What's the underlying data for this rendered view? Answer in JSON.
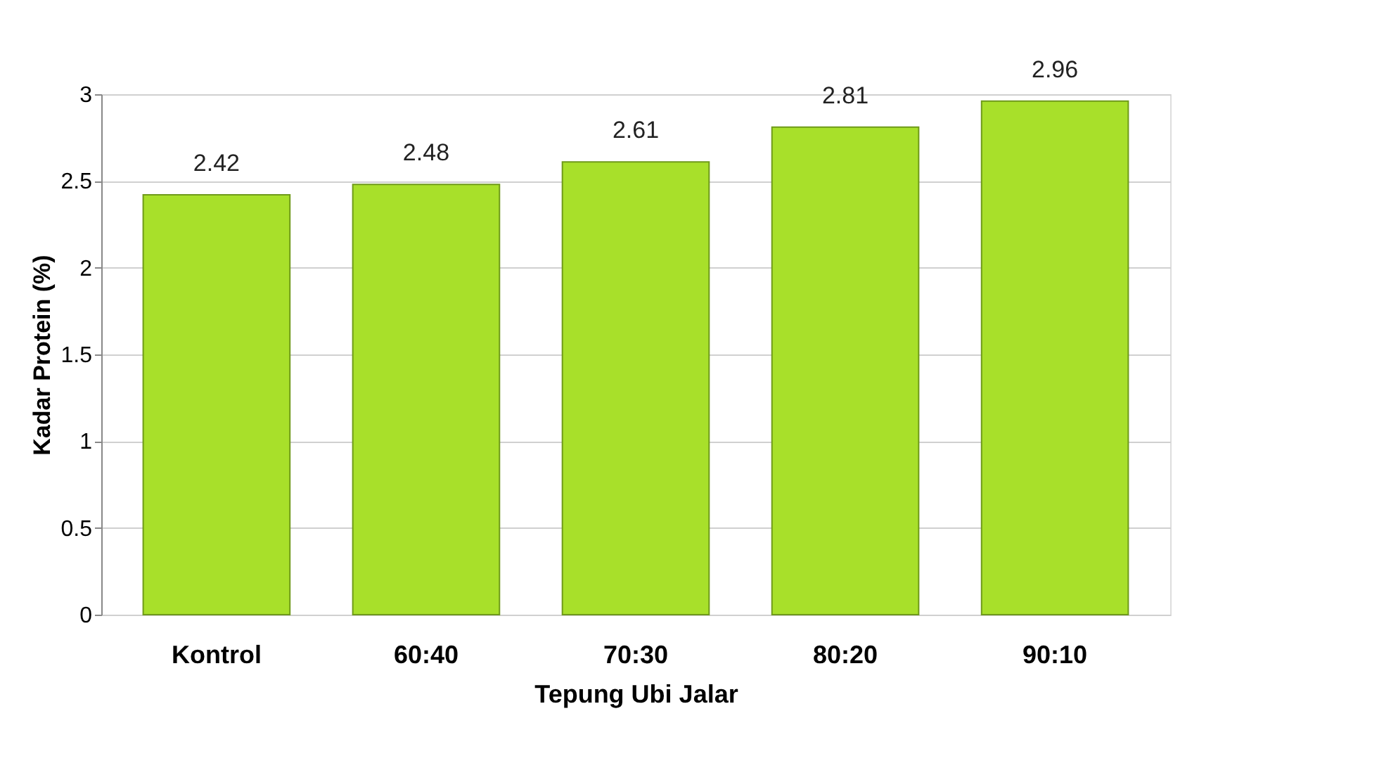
{
  "chart_data": {
    "type": "bar",
    "xlabel": "Tepung  Ubi Jalar",
    "ylabel": "Kadar  Protein (%)",
    "categories": [
      "Kontrol",
      "60:40",
      "70:30",
      "80:20",
      "90:10"
    ],
    "values": [
      2.42,
      2.48,
      2.61,
      2.81,
      2.96
    ],
    "color": "#a8e02a",
    "ylim": [
      0,
      3
    ],
    "yticks": [
      0,
      0.5,
      1,
      1.5,
      2,
      2.5,
      3
    ],
    "grid": "y",
    "data_labels": true
  }
}
